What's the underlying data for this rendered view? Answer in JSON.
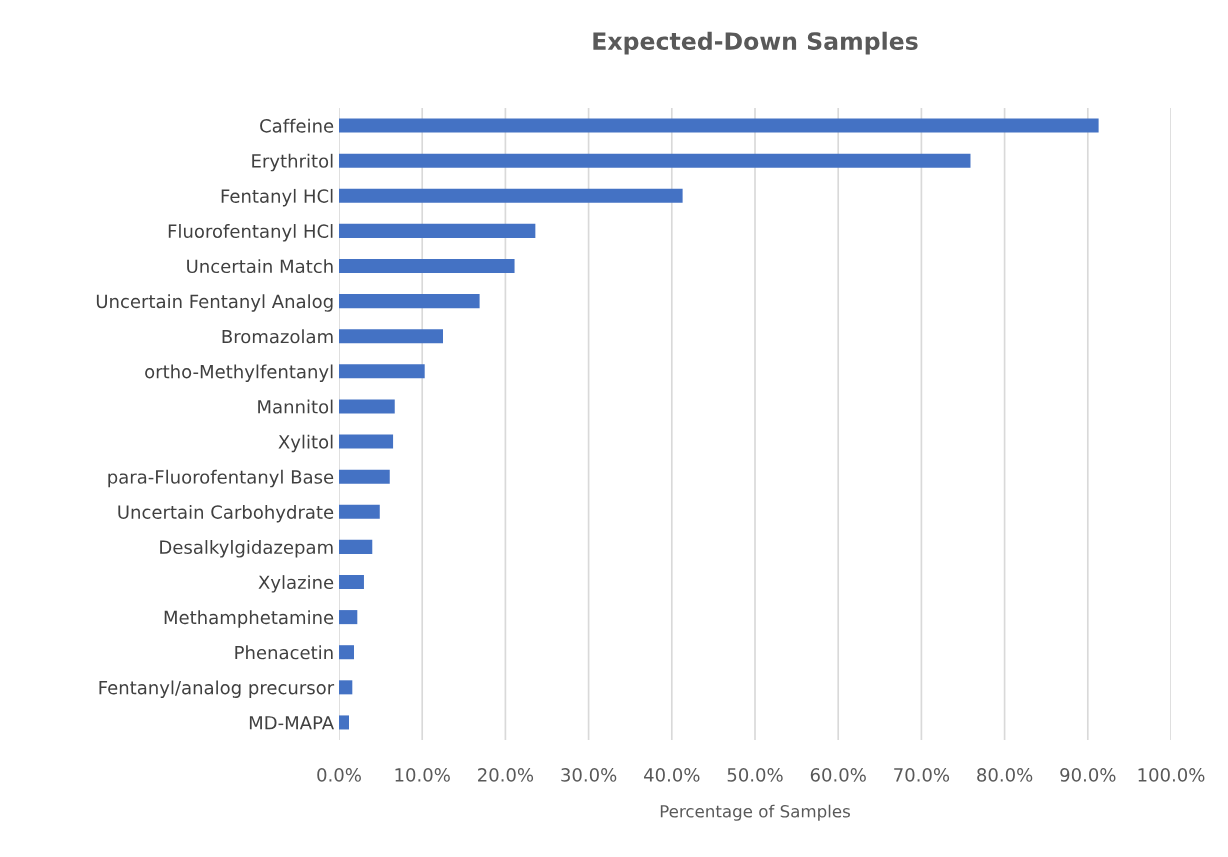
{
  "chart_data": {
    "type": "bar",
    "orientation": "horizontal",
    "title": "Expected-Down Samples",
    "xlabel": "Percentage of Samples",
    "categories": [
      "Caffeine",
      "Erythritol",
      "Fentanyl HCl",
      "Fluorofentanyl HCl",
      "Uncertain Match",
      "Uncertain Fentanyl Analog",
      "Bromazolam",
      "ortho-Methylfentanyl",
      "Mannitol",
      "Xylitol",
      "para-Fluorofentanyl Base",
      "Uncertain Carbohydrate",
      "Desalkylgidazepam",
      "Xylazine",
      "Methamphetamine",
      "Phenacetin",
      "Fentanyl/analog precursor",
      "MD-MAPA"
    ],
    "values": [
      91.3,
      75.9,
      41.3,
      23.6,
      21.1,
      16.9,
      12.5,
      10.3,
      6.7,
      6.5,
      6.1,
      4.9,
      4.0,
      3.0,
      2.2,
      1.8,
      1.6,
      1.2
    ],
    "color": "#4472c4",
    "xlim": [
      0,
      100
    ],
    "xticks": [
      {
        "value": 0,
        "label": "0.0%"
      },
      {
        "value": 10,
        "label": "10.0%"
      },
      {
        "value": 20,
        "label": "20.0%"
      },
      {
        "value": 30,
        "label": "30.0%"
      },
      {
        "value": 40,
        "label": "40.0%"
      },
      {
        "value": 50,
        "label": "50.0%"
      },
      {
        "value": 60,
        "label": "60.0%"
      },
      {
        "value": 70,
        "label": "70.0%"
      },
      {
        "value": 80,
        "label": "80.0%"
      },
      {
        "value": 90,
        "label": "90.0%"
      },
      {
        "value": 100,
        "label": "100.0%"
      }
    ],
    "grid": "x"
  }
}
